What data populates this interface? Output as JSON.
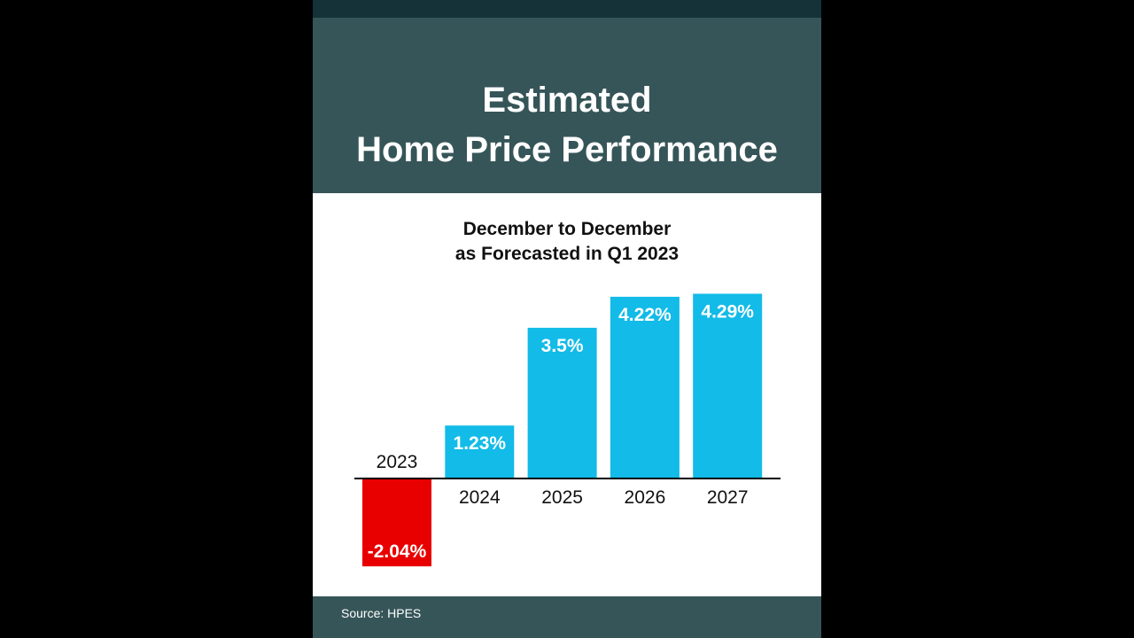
{
  "header": {
    "title_line1": "Estimated",
    "title_line2": "Home Price Performance"
  },
  "subtitle": {
    "line1": "December to December",
    "line2": "as Forecasted in Q1 2023"
  },
  "footer": {
    "source": "Source: HPES"
  },
  "colors": {
    "positive": "#12bbe8",
    "negative": "#e80000",
    "header_bg": "#365558",
    "top_strip": "#143238"
  },
  "chart_data": {
    "type": "bar",
    "categories": [
      "2023",
      "2024",
      "2025",
      "2026",
      "2027"
    ],
    "values": [
      -2.04,
      1.23,
      3.5,
      4.22,
      4.29
    ],
    "data_labels": [
      "-2.04%",
      "1.23%",
      "3.5%",
      "4.22%",
      "4.29%"
    ],
    "ylim": [
      -2.04,
      4.29
    ],
    "grid": false,
    "legend": "none"
  }
}
